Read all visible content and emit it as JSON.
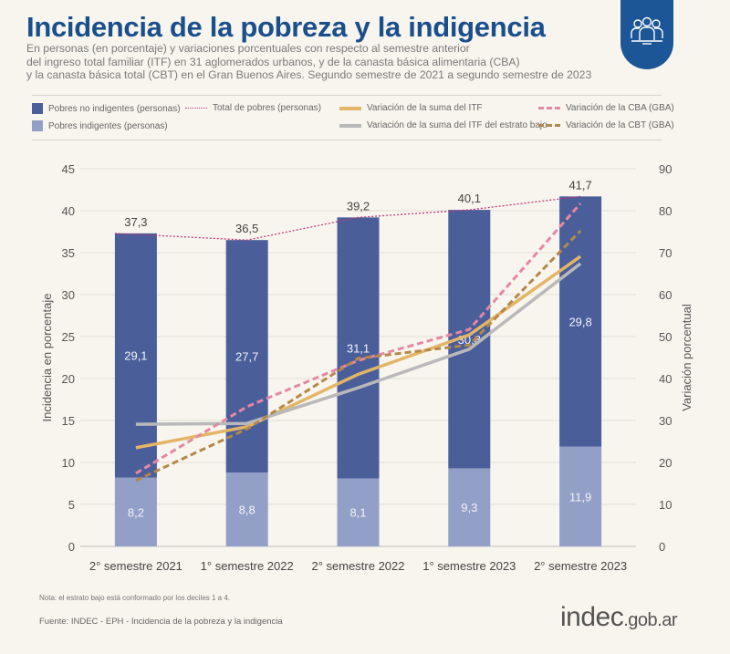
{
  "header": {
    "title": "Incidencia de la pobreza y la indigencia",
    "subtitle_lines": [
      "En personas (en porcentaje) y variaciones porcentuales con respecto al semestre anterior",
      "del ingreso total familiar (ITF) en 31 aglomerados urbanos, y de la canasta básica alimentaria (CBA)",
      "y la canasta básica total (CBT) en el Gran Buenos Aires. Segundo semestre de 2021 a segundo semestre de 2023"
    ],
    "badge_icon": "people-group-icon"
  },
  "legend": {
    "items": [
      {
        "label": "Pobres no indigentes (personas)",
        "kind": "box",
        "color": "#4a5e9a"
      },
      {
        "label": "Pobres indigentes (personas)",
        "kind": "box",
        "color": "#929fc7"
      },
      {
        "label": "Total de pobres (personas)",
        "kind": "dotted",
        "color": "#c2387a"
      },
      {
        "label": "Variación de la suma del ITF",
        "kind": "line",
        "color": "#e3b566"
      },
      {
        "label": "Variación de la suma del ITF del estrato bajo",
        "kind": "line",
        "color": "#b9b9b9"
      },
      {
        "label": "Variación de la CBA (GBA)",
        "kind": "dashed",
        "color": "#e389a3"
      },
      {
        "label": "Variación de la CBT (GBA)",
        "kind": "dashed",
        "color": "#b3884a"
      }
    ]
  },
  "chart_data": {
    "type": "bar",
    "categories": [
      "2° semestre 2021",
      "1° semestre 2022",
      "2° semestre 2022",
      "1° semestre 2023",
      "2° semestre 2023"
    ],
    "ylabel": "Incidencia en porcentaje",
    "y2label": "Variación porcentual",
    "ylim": [
      0,
      45
    ],
    "y2lim": [
      0,
      90
    ],
    "yticks": [
      0,
      5,
      10,
      15,
      20,
      25,
      30,
      35,
      40,
      45
    ],
    "y2ticks": [
      0,
      10,
      20,
      30,
      40,
      50,
      60,
      70,
      80,
      90
    ],
    "grid": true,
    "stacked_bars": [
      {
        "name": "Pobres indigentes (personas)",
        "color": "#929fc7",
        "values": [
          8.2,
          8.8,
          8.1,
          9.3,
          11.9
        ],
        "labels": [
          "8,2",
          "8,8",
          "8,1",
          "9,3",
          "11,9"
        ]
      },
      {
        "name": "Pobres no indigentes (personas)",
        "color": "#4a5e9a",
        "values": [
          29.1,
          27.7,
          31.1,
          30.8,
          29.8
        ],
        "labels": [
          "29,1",
          "27,7",
          "31,1",
          "30,8",
          "29,8"
        ]
      }
    ],
    "total_line": {
      "name": "Total de pobres (personas)",
      "color": "#c2387a",
      "values": [
        37.3,
        36.5,
        39.2,
        40.1,
        41.7
      ],
      "labels": [
        "37,3",
        "36,5",
        "39,2",
        "40,1",
        "41,7"
      ]
    },
    "secondary_series": [
      {
        "name": "Variación de la suma del ITF",
        "color": "#e3b566",
        "style": "solid",
        "values": [
          23.5,
          28.5,
          41.0,
          50.4,
          69.1
        ]
      },
      {
        "name": "Variación de la suma del ITF del estrato bajo",
        "color": "#b9b9b9",
        "style": "solid",
        "values": [
          29.1,
          29.3,
          37.8,
          47.0,
          67.4
        ]
      },
      {
        "name": "Variación de la CBA (GBA)",
        "color": "#e389a3",
        "style": "dashed",
        "values": [
          17.4,
          33.3,
          44.3,
          51.7,
          81.7
        ]
      },
      {
        "name": "Variación de la CBT (GBA)",
        "color": "#b3884a",
        "style": "dashed",
        "values": [
          15.7,
          28.0,
          44.8,
          48.0,
          75.2
        ]
      }
    ]
  },
  "footer": {
    "note": "Nota: el estrato bajo está conformado por los deciles 1 a 4.",
    "source": "Fuente: INDEC - EPH - Incidencia de la pobreza y la indigencia",
    "brand_main": "indec",
    "brand_suffix": ".gob.ar"
  }
}
